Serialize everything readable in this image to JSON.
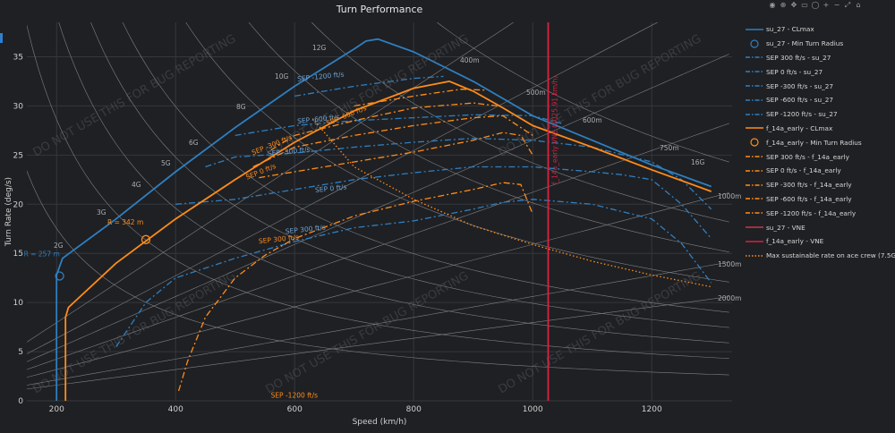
{
  "chart_data": {
    "type": "line",
    "title": "Turn Performance",
    "xlabel": "Speed (km/h)",
    "ylabel": "Turn Rate (deg/s)",
    "xlim": [
      150,
      1335
    ],
    "ylim": [
      0,
      38.5
    ],
    "x_ticks": [
      200,
      400,
      600,
      800,
      1000,
      1200
    ],
    "y_ticks": [
      0,
      5,
      10,
      15,
      20,
      25,
      30,
      35
    ],
    "g_lines": [
      {
        "label": "2G",
        "g": 2
      },
      {
        "label": "3G",
        "g": 3
      },
      {
        "label": "4G",
        "g": 4
      },
      {
        "label": "5G",
        "g": 5
      },
      {
        "label": "6G",
        "g": 6
      },
      {
        "label": "8G",
        "g": 8
      },
      {
        "label": "10G",
        "g": 10
      },
      {
        "label": "12G",
        "g": 12
      },
      {
        "label": "16G",
        "g": 16
      }
    ],
    "radius_lines": [
      {
        "label": "400m",
        "r": 400
      },
      {
        "label": "500m",
        "r": 500
      },
      {
        "label": "600m",
        "r": 600
      },
      {
        "label": "750m",
        "r": 750
      },
      {
        "label": "1000m",
        "r": 1000
      },
      {
        "label": "1500m",
        "r": 1500
      },
      {
        "label": "2000m",
        "r": 2000
      }
    ],
    "series": [
      {
        "name": "su_27 - CLmax",
        "color": "#2f7fc1",
        "dash": "solid",
        "x": [
          200,
          200,
          210,
          300,
          400,
          500,
          600,
          700,
          720,
          740,
          800,
          900,
          1000,
          1100,
          1200,
          1300
        ],
        "y": [
          0,
          12.8,
          14.5,
          18.5,
          23.3,
          27.8,
          32.0,
          35.8,
          36.6,
          36.8,
          35.5,
          32.5,
          29.0,
          26.5,
          24.0,
          21.8
        ]
      },
      {
        "name": "su_27 - Min Turn Radius",
        "color": "#2f7fc1",
        "marker": "circle",
        "x": [
          205
        ],
        "y": [
          12.7
        ],
        "annotation": "R = 257 m"
      },
      {
        "name": "SEP 300 ft/s - su_27",
        "color": "#2f7fc1",
        "dash": "dashdot",
        "x": [
          300,
          350,
          400,
          500,
          600,
          700,
          800,
          900,
          950,
          1000,
          1100,
          1200,
          1250,
          1300
        ],
        "y": [
          5.5,
          10.0,
          12.5,
          14.5,
          16.2,
          17.6,
          18.3,
          19.5,
          20.2,
          20.5,
          20.0,
          18.5,
          16.0,
          12.0
        ]
      },
      {
        "name": "SEP 0 ft/s - su_27",
        "color": "#2f7fc1",
        "dash": "dashdot",
        "x": [
          400,
          500,
          600,
          700,
          800,
          900,
          1000,
          1100,
          1150,
          1200,
          1250,
          1300
        ],
        "y": [
          20.0,
          20.5,
          21.5,
          22.5,
          23.2,
          23.8,
          23.8,
          23.3,
          23.0,
          22.5,
          20.0,
          16.5
        ]
      },
      {
        "name": "SEP -300 ft/s - su_27",
        "color": "#2f7fc1",
        "dash": "dashdot",
        "x": [
          450,
          500,
          600,
          700,
          800,
          900,
          1000,
          1100,
          1200,
          1250,
          1300
        ],
        "y": [
          23.8,
          24.8,
          25.2,
          25.8,
          26.3,
          26.7,
          26.5,
          25.8,
          24.3,
          22.5,
          19.5
        ]
      },
      {
        "name": "SEP -600 ft/s - su_27",
        "color": "#2f7fc1",
        "dash": "dashdot",
        "x": [
          500,
          600,
          700,
          800,
          900,
          1000,
          1050
        ],
        "y": [
          27.0,
          28.0,
          28.5,
          28.8,
          29.1,
          29.0,
          28.2
        ]
      },
      {
        "name": "SEP -1200 ft/s - su_27",
        "color": "#2f7fc1",
        "dash": "dashdot",
        "x": [
          600,
          700,
          800,
          850
        ],
        "y": [
          31.0,
          32.0,
          32.8,
          33.0
        ]
      },
      {
        "name": "f_14a_early - CLmax",
        "color": "#ff8c1a",
        "dash": "solid",
        "x": [
          215,
          215,
          220,
          300,
          400,
          500,
          600,
          700,
          800,
          860,
          900,
          950,
          1000,
          1100,
          1200,
          1300
        ],
        "y": [
          0,
          8.5,
          9.5,
          14.0,
          18.5,
          22.5,
          26.3,
          29.5,
          31.8,
          32.5,
          31.5,
          29.8,
          28.0,
          25.8,
          23.5,
          21.3
        ]
      },
      {
        "name": "f_14a_early - Min Turn Radius",
        "color": "#ff8c1a",
        "marker": "circle",
        "x": [
          350
        ],
        "y": [
          16.4
        ],
        "annotation": "R = 342 m"
      },
      {
        "name": "SEP 300 ft/s - f_14a_early",
        "color": "#ff8c1a",
        "dash": "dashdot",
        "x": [
          405,
          420,
          450,
          500,
          550,
          600,
          700,
          800,
          900,
          950,
          980,
          1000
        ],
        "y": [
          1.0,
          4.0,
          8.5,
          12.5,
          14.8,
          16.5,
          18.8,
          20.3,
          21.5,
          22.2,
          22.0,
          19.0
        ]
      },
      {
        "name": "SEP 0 ft/s - f_14a_early",
        "color": "#ff8c1a",
        "dash": "dashdot",
        "x": [
          540,
          600,
          700,
          800,
          900,
          950,
          980,
          1000
        ],
        "y": [
          22.7,
          23.3,
          24.3,
          25.3,
          26.5,
          27.3,
          27.0,
          25.0
        ]
      },
      {
        "name": "SEP -300 ft/s - f_14a_early",
        "color": "#ff8c1a",
        "dash": "dashdot",
        "x": [
          530,
          600,
          700,
          800,
          900,
          950,
          1000
        ],
        "y": [
          23.8,
          25.8,
          27.0,
          28.0,
          28.8,
          29.0,
          27.0
        ]
      },
      {
        "name": "SEP -600 ft/s - f_14a_early",
        "color": "#ff8c1a",
        "dash": "dashdot",
        "x": [
          560,
          600,
          700,
          800,
          900,
          940
        ],
        "y": [
          25.5,
          27.0,
          28.5,
          29.8,
          30.3,
          30.0
        ]
      },
      {
        "name": "SEP -1200 ft/s - f_14a_early",
        "color": "#ff8c1a",
        "dash": "dashdot",
        "x": [
          700,
          800,
          880,
          920
        ],
        "y": [
          30.0,
          31.0,
          31.7,
          31.6
        ]
      },
      {
        "name": "su_27 - VNE",
        "color": "#c8384a",
        "dash": "solid",
        "x": [
          1025.91,
          1025.91
        ],
        "y": [
          0,
          38.5
        ]
      },
      {
        "name": "f_14a_early - VNE",
        "color": "#d9213f",
        "dash": "solid",
        "x": [
          1025.91,
          1025.91
        ],
        "y": [
          0,
          38.5
        ]
      },
      {
        "name": "Max sustainable rate on ace crew (7.5G)",
        "color": "#ff8c1a",
        "dash": "dot",
        "x": [
          630,
          700,
          800,
          900,
          1000,
          1100,
          1200,
          1300
        ],
        "y": [
          28.7,
          23.8,
          20.5,
          17.8,
          15.9,
          14.2,
          12.8,
          11.6
        ]
      }
    ],
    "annotations": [
      {
        "text": "SEP -1200 ft/s",
        "x": 650,
        "y": 32.5,
        "color": "#6ea3d6"
      },
      {
        "text": "SEP -600 ft/s",
        "x": 650,
        "y": 28.2,
        "color": "#6ea3d6"
      },
      {
        "text": "SEP -300 ft/s",
        "x": 600,
        "y": 24.9,
        "color": "#6ea3d6"
      },
      {
        "text": "SEP 0 ft/s",
        "x": 680,
        "y": 21.2,
        "color": "#6ea3d6"
      },
      {
        "text": "SEP 300 ft/s",
        "x": 630,
        "y": 17.0,
        "color": "#6ea3d6"
      },
      {
        "text": "SEP -600 ft/s",
        "x": 700,
        "y": 28.0,
        "color": "#ff8c1a"
      },
      {
        "text": "SEP -300 ft/s",
        "x": 575,
        "y": 25.0,
        "color": "#ff8c1a"
      },
      {
        "text": "SEP 0 ft/s",
        "x": 565,
        "y": 22.5,
        "color": "#ff8c1a"
      },
      {
        "text": "SEP 300 ft/s",
        "x": 585,
        "y": 16.0,
        "color": "#ff8c1a"
      },
      {
        "text": "SEP -1200 ft/s",
        "x": 605,
        "y": 0.3,
        "color": "#ff8c1a"
      },
      {
        "text": "f_14a_early VNE (1025.91 km/h)",
        "x": 1025.91,
        "y": 22.0,
        "color": "#d9213f"
      }
    ],
    "watermark": "DO NOT USE THIS FOR BUG REPORTING",
    "legend_position": "right"
  },
  "ui": {
    "modebar_icons": [
      "camera-icon",
      "zoom-icon",
      "pan-icon",
      "box-select-icon",
      "lasso-icon",
      "zoom-in-icon",
      "zoom-out-icon",
      "autoscale-icon",
      "reset-axes-icon"
    ],
    "modebar_glyphs": [
      "◉",
      "⊕",
      "✥",
      "▭",
      "◯",
      "+",
      "−",
      "⤢",
      "⌂"
    ]
  }
}
